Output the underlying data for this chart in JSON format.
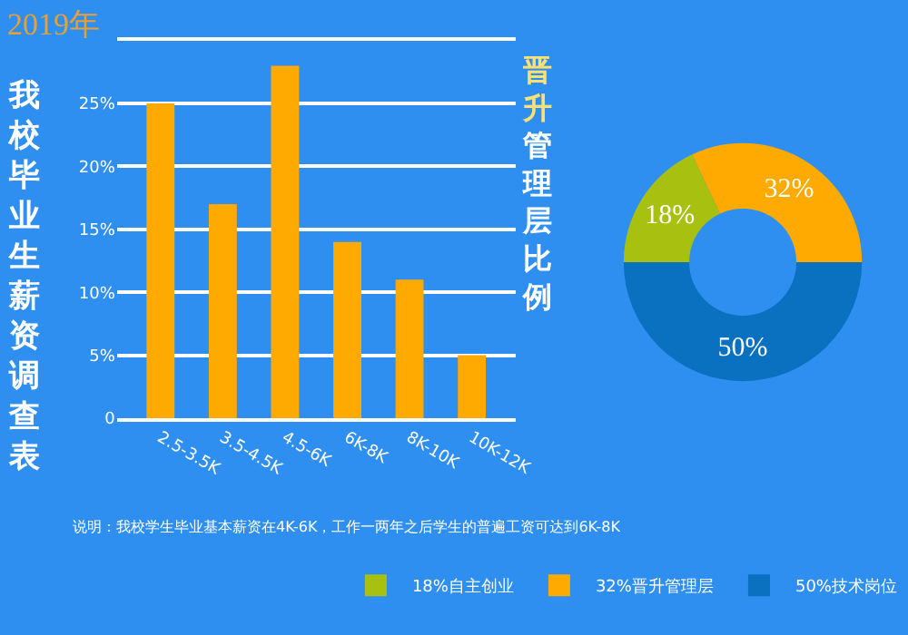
{
  "chart_data": [
    {
      "type": "bar",
      "title": "我校毕业生薪资调查表",
      "subtitle": "2019年",
      "categories": [
        "2.5-3.5K",
        "3.5-4.5K",
        "4.5-6K",
        "6K-8K",
        "8K-10K",
        "10K-12K"
      ],
      "values": [
        25,
        17,
        28,
        14,
        11,
        5
      ],
      "color": "#ffaa00",
      "ylim": [
        0,
        30
      ],
      "yticks": [
        {
          "value": 0,
          "label": "0"
        },
        {
          "value": 5,
          "label": "5%"
        },
        {
          "value": 10,
          "label": "10%"
        },
        {
          "value": 15,
          "label": "15%"
        },
        {
          "value": 20,
          "label": "20%"
        },
        {
          "value": 25,
          "label": "25%"
        },
        {
          "value": 30,
          "label": null
        }
      ],
      "grid": "y",
      "annotations": [
        "说明：我校学生毕业基本薪资在4K-6K，工作一两年之后学生的普遍工资可达到6K-8K"
      ]
    },
    {
      "type": "donut",
      "title": "晋升管理层比例",
      "categories": [
        "18%自主创业",
        "32%晋升管理层",
        "50%技术岗位"
      ],
      "values": [
        18,
        32,
        50
      ],
      "colors": [
        "#a8c010",
        "#ffaa00",
        "#0a70c0"
      ],
      "value_labels": [
        "18%",
        "32%",
        "50%"
      ],
      "legend": "bottom"
    }
  ]
}
